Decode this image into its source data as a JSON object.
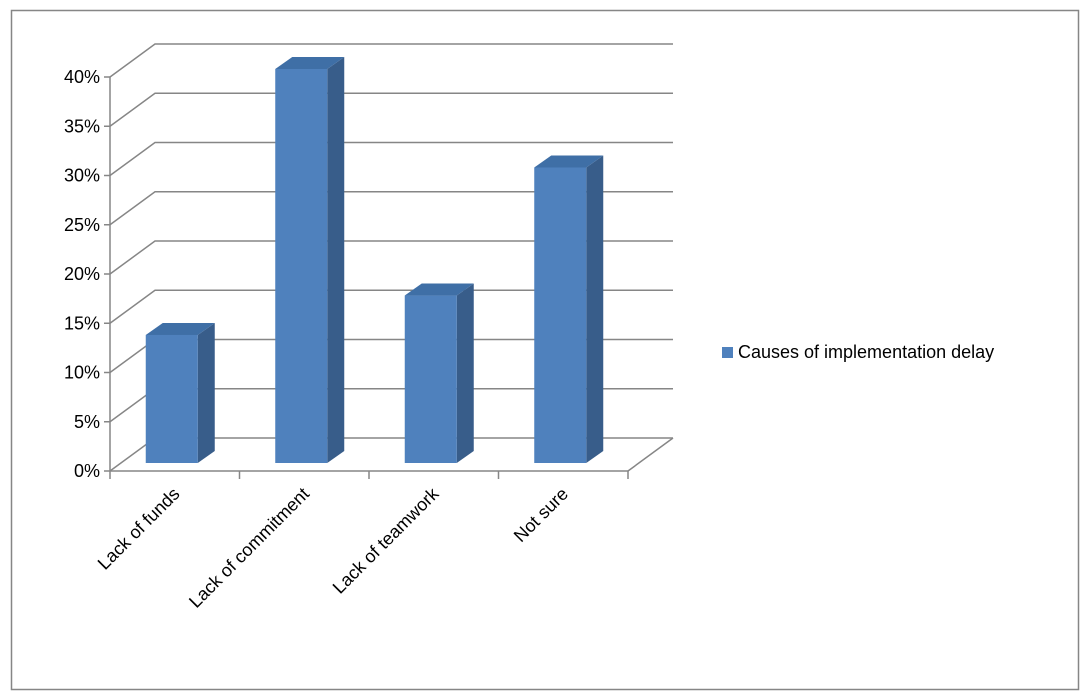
{
  "chart_data": {
    "type": "bar",
    "categories": [
      "Lack of funds",
      "Lack of commitment",
      "Lack of teamwork",
      "Not sure"
    ],
    "series": [
      {
        "name": "Causes of implementation delay",
        "values": [
          13,
          40,
          17,
          30
        ]
      }
    ],
    "y_ticks": [
      "0%",
      "5%",
      "10%",
      "15%",
      "20%",
      "25%",
      "30%",
      "35%",
      "40%"
    ],
    "ylim": [
      0,
      40
    ],
    "grid": true,
    "legend_position": "right",
    "colors": {
      "bar_front": "#4f81bd",
      "bar_side": "#385d8a",
      "bar_top": "#3f6fa6",
      "gridline": "#868686",
      "frame": "#868686",
      "text": "#000000"
    }
  }
}
